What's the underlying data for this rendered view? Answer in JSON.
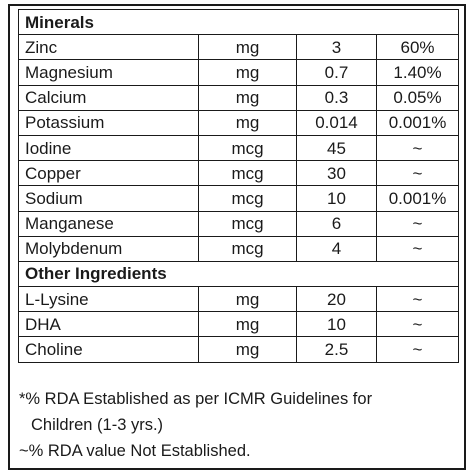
{
  "minerals": {
    "heading": "Minerals",
    "rows": [
      {
        "name": "Zinc",
        "unit": "mg",
        "amount": "3",
        "rda": "60%"
      },
      {
        "name": "Magnesium",
        "unit": "mg",
        "amount": "0.7",
        "rda": "1.40%"
      },
      {
        "name": "Calcium",
        "unit": "mg",
        "amount": "0.3",
        "rda": "0.05%"
      },
      {
        "name": "Potassium",
        "unit": "mg",
        "amount": "0.014",
        "rda": "0.001%"
      },
      {
        "name": "Iodine",
        "unit": "mcg",
        "amount": "45",
        "rda": "~"
      },
      {
        "name": "Copper",
        "unit": "mcg",
        "amount": "30",
        "rda": "~"
      },
      {
        "name": "Sodium",
        "unit": "mcg",
        "amount": "10",
        "rda": "0.001%"
      },
      {
        "name": "Manganese",
        "unit": "mcg",
        "amount": "6",
        "rda": "~"
      },
      {
        "name": "Molybdenum",
        "unit": "mcg",
        "amount": "4",
        "rda": "~"
      }
    ]
  },
  "other": {
    "heading": "Other Ingredients",
    "rows": [
      {
        "name": "L-Lysine",
        "unit": "mg",
        "amount": "20",
        "rda": "~"
      },
      {
        "name": "DHA",
        "unit": "mg",
        "amount": "10",
        "rda": "~"
      },
      {
        "name": "Choline",
        "unit": "mg",
        "amount": "2.5",
        "rda": "~"
      }
    ]
  },
  "footnotes": {
    "line1": "*% RDA Established as per ICMR Guidelines for",
    "line2": "Children (1-3 yrs.)",
    "line3": "~% RDA value Not Established."
  }
}
